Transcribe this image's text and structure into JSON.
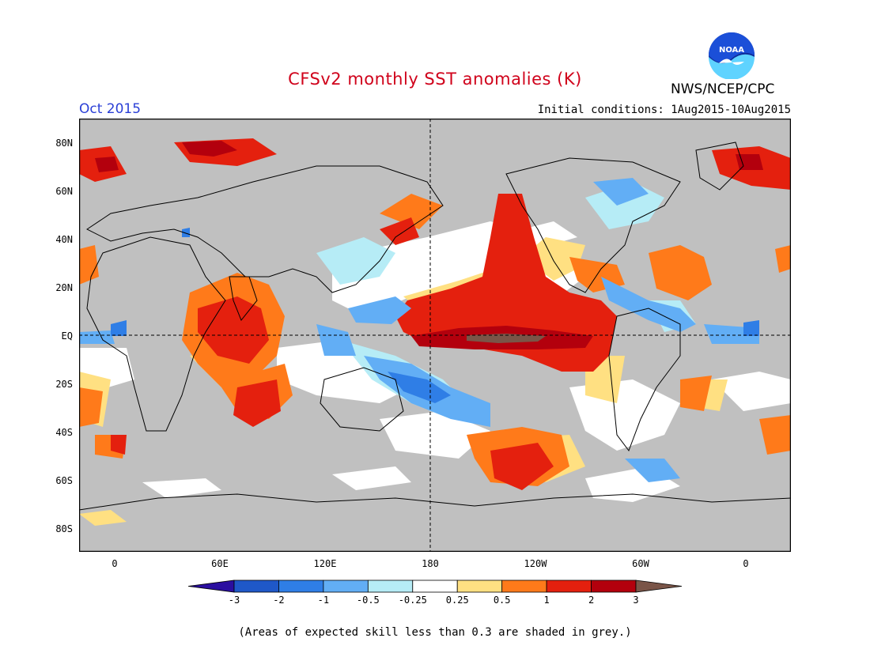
{
  "header": {
    "title": "CFSv2 monthly SST anomalies (K)",
    "month": "Oct 2015",
    "initial_conditions": "Initial conditions: 1Aug2015-10Aug2015",
    "agency": "NWS/NCEP/CPC",
    "logo_text": "NOAA"
  },
  "map": {
    "lat_labels": [
      "80N",
      "60N",
      "40N",
      "20N",
      "EQ",
      "20S",
      "40S",
      "60S",
      "80S"
    ],
    "lon_labels": [
      "0",
      "60E",
      "120E",
      "180",
      "120W",
      "60W",
      "0"
    ]
  },
  "legend": {
    "ticks": [
      "-3",
      "-2",
      "-1",
      "-0.5",
      "-0.25",
      "0.25",
      "0.5",
      "1",
      "2",
      "3"
    ],
    "colors": [
      "#2b0fa0",
      "#1f58c8",
      "#2f7ee6",
      "#62aef5",
      "#b6ecf6",
      "#ffffff",
      "#ffe082",
      "#ff7a1a",
      "#e4200e",
      "#b3000d",
      "#7a5548"
    ]
  },
  "colors": {
    "land": "#c0c0c0",
    "neutral_ocean": "#ffffff",
    "title_red": "#d0021b",
    "month_blue": "#2a3fd6"
  },
  "footnote": "(Areas of expected skill less than 0.3 are shaded in grey.)"
}
